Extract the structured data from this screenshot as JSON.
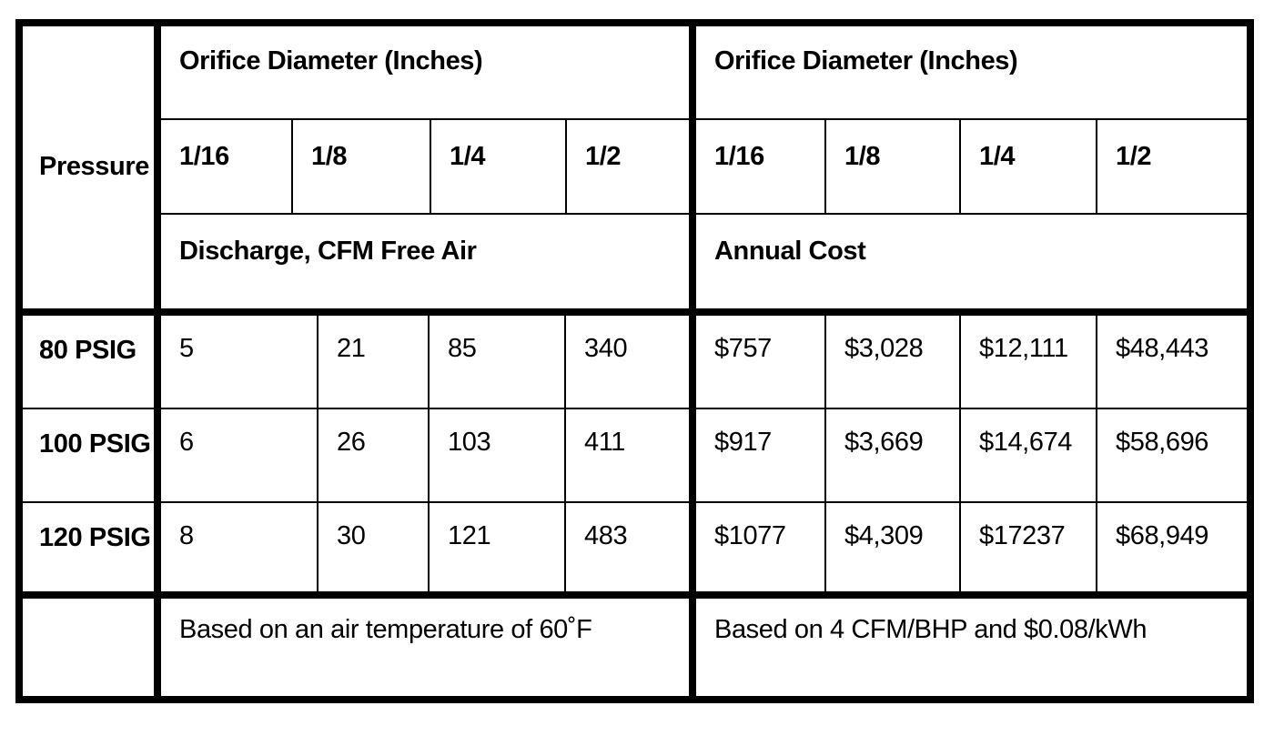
{
  "table": {
    "border_color": "#000000",
    "background_color": "#ffffff",
    "text_color": "#000000",
    "pressure_header": "Pressure",
    "row_headers": [
      "80 PSIG",
      "100 PSIG",
      "120 PSIG"
    ],
    "left": {
      "group_header": "Orifice Diameter (Inches)",
      "columns": [
        "1/16",
        "1/8",
        "1/4",
        "1/2"
      ],
      "section_label": "Discharge, CFM Free Air",
      "rows": [
        [
          "5",
          "21",
          "85",
          "340"
        ],
        [
          "6",
          "26",
          "103",
          "411"
        ],
        [
          "8",
          "30",
          "121",
          "483"
        ]
      ],
      "footnote": "Based on an air temperature of 60˚F"
    },
    "right": {
      "group_header": "Orifice Diameter (Inches)",
      "columns": [
        "1/16",
        "1/8",
        "1/4",
        "1/2"
      ],
      "section_label": "Annual Cost",
      "rows": [
        [
          "$757",
          "$3,028",
          "$12,111",
          "$48,443"
        ],
        [
          "$917",
          "$3,669",
          "$14,674",
          "$58,696"
        ],
        [
          "$1077",
          "$4,309",
          "$17237",
          "$68,949"
        ]
      ],
      "footnote": "Based on 4 CFM/BHP and $0.08/kWh"
    }
  },
  "chart_data": {
    "type": "table",
    "row_header_label": "Pressure",
    "row_labels": [
      "80 PSIG",
      "100 PSIG",
      "120 PSIG"
    ],
    "column_group_label": "Orifice Diameter (Inches)",
    "column_labels": [
      "1/16",
      "1/8",
      "1/4",
      "1/2"
    ],
    "discharge_cfm_free_air": [
      [
        5,
        21,
        85,
        340
      ],
      [
        6,
        26,
        103,
        411
      ],
      [
        8,
        30,
        121,
        483
      ]
    ],
    "annual_cost_usd": [
      [
        757,
        3028,
        12111,
        48443
      ],
      [
        917,
        3669,
        14674,
        58696
      ],
      [
        1077,
        4309,
        17237,
        68949
      ]
    ],
    "notes": [
      "Based on an air temperature of 60˚F",
      "Based on 4 CFM/BHP and $0.08/kWh"
    ]
  }
}
